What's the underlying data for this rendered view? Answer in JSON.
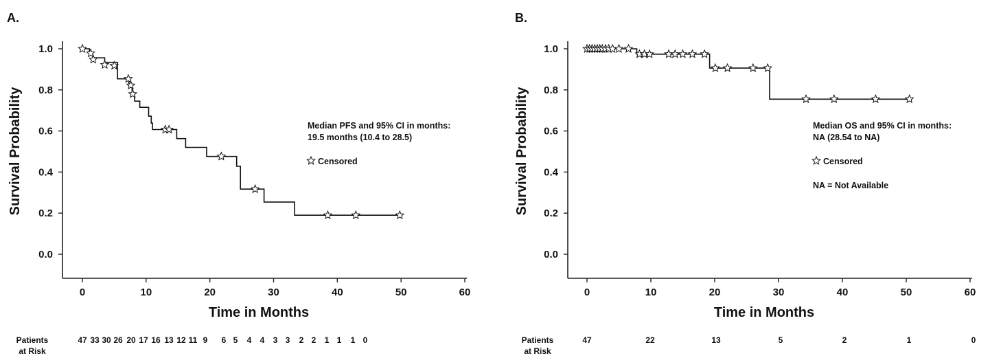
{
  "chart_data": [
    {
      "type": "line",
      "panel_label": "A.",
      "xlabel": "Time in Months",
      "ylabel": "Survival Probability",
      "xlim": [
        -3,
        61
      ],
      "ylim": [
        -0.12,
        1.04
      ],
      "x_ticks": [
        0,
        10,
        20,
        30,
        40,
        50,
        60
      ],
      "y_ticks": [
        0.0,
        0.2,
        0.4,
        0.6,
        0.8,
        1.0
      ],
      "x_tick_labels": [
        "0",
        "10",
        "20",
        "30",
        "40",
        "50",
        "60"
      ],
      "y_tick_labels": [
        "0.0",
        "0.2",
        "0.4",
        "0.6",
        "0.8",
        "1.0"
      ],
      "step_curve": [
        [
          0,
          1.0
        ],
        [
          1.1,
          1.0
        ],
        [
          1.1,
          0.978
        ],
        [
          1.6,
          0.978
        ],
        [
          1.6,
          0.956
        ],
        [
          3.5,
          0.956
        ],
        [
          3.5,
          0.934
        ],
        [
          5.5,
          0.934
        ],
        [
          5.5,
          0.854
        ],
        [
          7.3,
          0.854
        ],
        [
          7.3,
          0.825
        ],
        [
          7.8,
          0.825
        ],
        [
          7.8,
          0.78
        ],
        [
          8.2,
          0.78
        ],
        [
          8.2,
          0.745
        ],
        [
          9.0,
          0.745
        ],
        [
          9.0,
          0.715
        ],
        [
          10.4,
          0.715
        ],
        [
          10.4,
          0.672
        ],
        [
          10.8,
          0.672
        ],
        [
          10.8,
          0.638
        ],
        [
          11.0,
          0.638
        ],
        [
          11.0,
          0.607
        ],
        [
          14.8,
          0.607
        ],
        [
          14.8,
          0.563
        ],
        [
          16.2,
          0.563
        ],
        [
          16.2,
          0.52
        ],
        [
          19.5,
          0.52
        ],
        [
          19.5,
          0.476
        ],
        [
          24.2,
          0.476
        ],
        [
          24.2,
          0.428
        ],
        [
          24.8,
          0.428
        ],
        [
          24.8,
          0.317
        ],
        [
          28.5,
          0.317
        ],
        [
          28.5,
          0.254
        ],
        [
          33.3,
          0.254
        ],
        [
          33.3,
          0.19
        ],
        [
          50,
          0.19
        ]
      ],
      "censored": [
        [
          0,
          1.0
        ],
        [
          1.3,
          0.978
        ],
        [
          1.7,
          0.948
        ],
        [
          3.5,
          0.922
        ],
        [
          5.0,
          0.918
        ],
        [
          7.2,
          0.854
        ],
        [
          7.6,
          0.822
        ],
        [
          7.9,
          0.78
        ],
        [
          13.0,
          0.607
        ],
        [
          13.6,
          0.607
        ],
        [
          21.8,
          0.476
        ],
        [
          27.1,
          0.317
        ],
        [
          38.5,
          0.19
        ],
        [
          42.9,
          0.19
        ],
        [
          49.8,
          0.19
        ]
      ],
      "annotation_lines": [
        "Median PFS and 95% CI in months:",
        "19.5 months (10.4 to 28.5)"
      ],
      "legend_label": "Censored",
      "risk_table": {
        "label_line1": "Patients",
        "label_line2": "at Risk",
        "values": [
          "47",
          "33",
          "30",
          "26",
          "20",
          "17",
          "16",
          "13",
          "12",
          "11",
          "9",
          "6",
          "5",
          "4",
          "4",
          "3",
          "3",
          "2",
          "2",
          "1",
          "1",
          "1",
          "0"
        ]
      }
    },
    {
      "type": "line",
      "panel_label": "B.",
      "xlabel": "Time in Months",
      "ylabel": "Survival Probability",
      "xlim": [
        -3,
        61
      ],
      "ylim": [
        -0.12,
        1.04
      ],
      "x_ticks": [
        0,
        10,
        20,
        30,
        40,
        50,
        60
      ],
      "y_ticks": [
        0.0,
        0.2,
        0.4,
        0.6,
        0.8,
        1.0
      ],
      "x_tick_labels": [
        "0",
        "10",
        "20",
        "30",
        "40",
        "50",
        "60"
      ],
      "y_tick_labels": [
        "0.0",
        "0.2",
        "0.4",
        "0.6",
        "0.8",
        "1.0"
      ],
      "step_curve": [
        [
          0,
          1.0
        ],
        [
          7.8,
          1.0
        ],
        [
          7.8,
          0.974
        ],
        [
          19.2,
          0.974
        ],
        [
          19.2,
          0.906
        ],
        [
          28.6,
          0.906
        ],
        [
          28.6,
          0.755
        ],
        [
          50.5,
          0.755
        ]
      ],
      "censored": [
        [
          0.0,
          1.0
        ],
        [
          0.4,
          1.0
        ],
        [
          0.8,
          1.0
        ],
        [
          1.2,
          1.0
        ],
        [
          1.6,
          1.0
        ],
        [
          2.0,
          1.0
        ],
        [
          2.4,
          1.0
        ],
        [
          2.9,
          1.0
        ],
        [
          3.4,
          1.0
        ],
        [
          4.0,
          1.0
        ],
        [
          5.0,
          1.0
        ],
        [
          6.5,
          1.0
        ],
        [
          8.2,
          0.974
        ],
        [
          9.0,
          0.974
        ],
        [
          9.8,
          0.974
        ],
        [
          12.8,
          0.974
        ],
        [
          13.8,
          0.974
        ],
        [
          15.0,
          0.974
        ],
        [
          16.5,
          0.974
        ],
        [
          18.4,
          0.974
        ],
        [
          20.1,
          0.906
        ],
        [
          22.0,
          0.906
        ],
        [
          26.0,
          0.906
        ],
        [
          28.3,
          0.906
        ],
        [
          34.3,
          0.755
        ],
        [
          38.7,
          0.755
        ],
        [
          45.2,
          0.755
        ],
        [
          50.5,
          0.755
        ]
      ],
      "annotation_lines": [
        "Median OS and 95% CI in months:",
        "NA (28.54 to NA)"
      ],
      "legend_label": "Censored",
      "footnote": "NA = Not Available",
      "risk_table": {
        "label_line1": "Patients",
        "label_line2": "at Risk",
        "values": [
          "47",
          "22",
          "13",
          "5",
          "2",
          "1",
          "0"
        ]
      }
    }
  ]
}
